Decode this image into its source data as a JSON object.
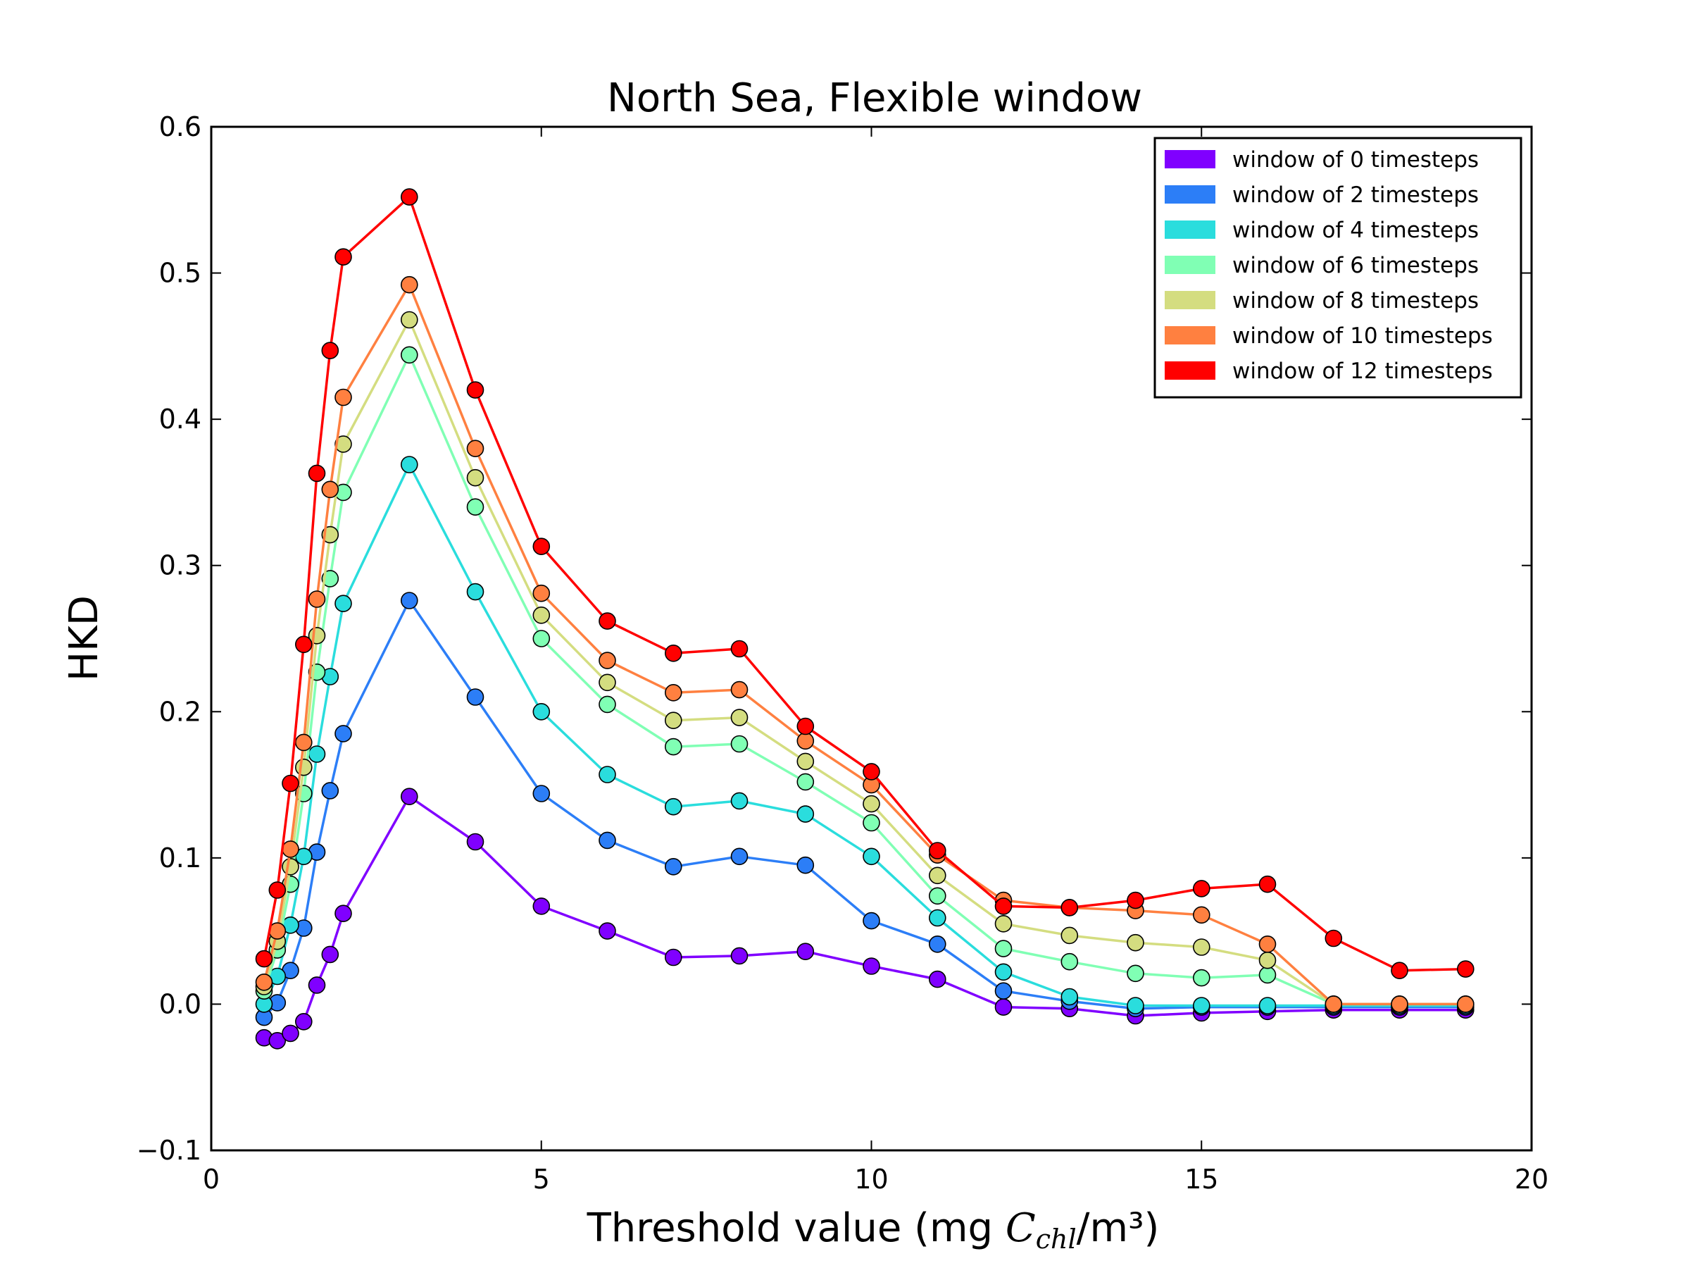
{
  "chart_data": {
    "type": "line",
    "title": "North Sea, Flexible window",
    "xlabel": {
      "prefix": "Threshold value (mg ",
      "symbol": "C",
      "subscript": "chl",
      "suffix": "/m³)"
    },
    "ylabel": "HKD",
    "xlim": [
      0,
      20
    ],
    "ylim": [
      -0.1,
      0.6
    ],
    "xticks": [
      0,
      5,
      10,
      15,
      20
    ],
    "yticks": [
      -0.1,
      0.0,
      0.1,
      0.2,
      0.3,
      0.4,
      0.5,
      0.6
    ],
    "xtick_labels": [
      "0",
      "5",
      "10",
      "15",
      "20"
    ],
    "ytick_labels": [
      "−0.1",
      "0.0",
      "0.1",
      "0.2",
      "0.3",
      "0.4",
      "0.5",
      "0.6"
    ],
    "grid": false,
    "legend_position": "top-right",
    "x": [
      0.8,
      1.0,
      1.2,
      1.4,
      1.6,
      1.8,
      2.0,
      3,
      4,
      5,
      6,
      7,
      8,
      9,
      10,
      11,
      12,
      13,
      14,
      15,
      16,
      17,
      18,
      19
    ],
    "series": [
      {
        "name": "window of 0 timesteps",
        "color": "#8000ff",
        "values": [
          -0.023,
          -0.025,
          -0.02,
          -0.012,
          0.013,
          0.034,
          0.062,
          0.142,
          0.111,
          0.067,
          0.05,
          0.032,
          0.033,
          0.036,
          0.026,
          0.017,
          -0.002,
          -0.003,
          -0.008,
          -0.006,
          -0.005,
          -0.004,
          -0.004,
          -0.004
        ]
      },
      {
        "name": "window of 2 timesteps",
        "color": "#2c7ef7",
        "values": [
          -0.009,
          0.001,
          0.023,
          0.052,
          0.104,
          0.146,
          0.185,
          0.276,
          0.21,
          0.144,
          0.112,
          0.094,
          0.101,
          0.095,
          0.057,
          0.041,
          0.009,
          0.002,
          -0.003,
          -0.002,
          -0.002,
          -0.002,
          -0.002,
          -0.002
        ]
      },
      {
        "name": "window of 4 timesteps",
        "color": "#2adddd",
        "values": [
          0.0,
          0.019,
          0.054,
          0.101,
          0.171,
          0.224,
          0.274,
          0.369,
          0.282,
          0.2,
          0.157,
          0.135,
          0.139,
          0.13,
          0.101,
          0.059,
          0.022,
          0.005,
          -0.001,
          -0.001,
          -0.001,
          -0.001,
          -0.001,
          -0.001
        ]
      },
      {
        "name": "window of 6 timesteps",
        "color": "#80ffb4",
        "values": [
          0.009,
          0.037,
          0.082,
          0.144,
          0.227,
          0.291,
          0.35,
          0.444,
          0.34,
          0.25,
          0.205,
          0.176,
          0.178,
          0.152,
          0.124,
          0.074,
          0.038,
          0.029,
          0.021,
          0.018,
          0.02,
          0.0,
          0.0,
          0.0
        ]
      },
      {
        "name": "window of 8 timesteps",
        "color": "#d4dd80",
        "values": [
          0.012,
          0.043,
          0.094,
          0.162,
          0.252,
          0.321,
          0.383,
          0.468,
          0.36,
          0.266,
          0.22,
          0.194,
          0.196,
          0.166,
          0.137,
          0.088,
          0.055,
          0.047,
          0.042,
          0.039,
          0.03,
          0.0,
          0.0,
          0.0
        ]
      },
      {
        "name": "window of 10 timesteps",
        "color": "#ff8040",
        "values": [
          0.015,
          0.05,
          0.106,
          0.179,
          0.277,
          0.352,
          0.415,
          0.492,
          0.38,
          0.281,
          0.235,
          0.213,
          0.215,
          0.18,
          0.15,
          0.102,
          0.071,
          0.066,
          0.064,
          0.061,
          0.041,
          0.0,
          0.0,
          0.0
        ]
      },
      {
        "name": "window of 12 timesteps",
        "color": "#ff0000",
        "values": [
          0.031,
          0.078,
          0.151,
          0.246,
          0.363,
          0.447,
          0.511,
          0.552,
          0.42,
          0.313,
          0.262,
          0.24,
          0.243,
          0.19,
          0.159,
          0.105,
          0.067,
          0.066,
          0.071,
          0.079,
          0.082,
          0.045,
          0.023,
          0.024
        ]
      }
    ]
  }
}
